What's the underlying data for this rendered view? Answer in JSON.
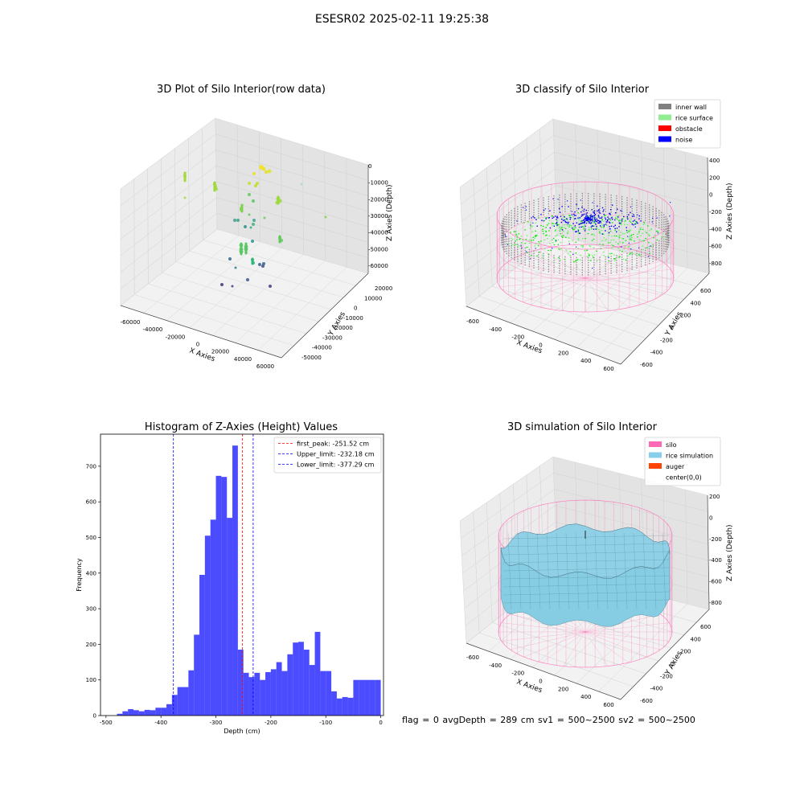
{
  "figure": {
    "suptitle": "ESESR02 2025-02-11 19:25:38",
    "bottom_info": "flag = 0     avgDepth = 289 cm  sv1 = 500~2500  sv2 = 500~2500"
  },
  "panels": {
    "raw": {
      "title": "3D Plot of Silo Interior(row data)",
      "xlabel": "X Axies",
      "ylabel": "Y Axies",
      "zlabel": "Z Axies (Depth)",
      "xticks": [
        "-60000",
        "-40000",
        "-20000",
        "0",
        "20000",
        "40000",
        "60000"
      ],
      "yticks": [
        "-50000",
        "-40000",
        "-30000",
        "-20000",
        "-10000",
        "0",
        "10000",
        "20000"
      ],
      "zticks": [
        "0",
        "-10000",
        "-20000",
        "-30000",
        "-40000",
        "-50000",
        "-60000"
      ]
    },
    "classify": {
      "title": "3D classify of Silo Interior",
      "xlabel": "X Axies",
      "ylabel": "Y Axies",
      "zlabel": "Z Axies (Depth)",
      "xticks": [
        "-600",
        "-400",
        "-200",
        "0",
        "200",
        "400",
        "600"
      ],
      "yticks": [
        "-600",
        "-400",
        "-200",
        "0",
        "200",
        "400",
        "600"
      ],
      "zticks": [
        "400",
        "200",
        "0",
        "-200",
        "-400",
        "-600",
        "-800"
      ],
      "legend": [
        {
          "label": "inner wall",
          "color": "#808080"
        },
        {
          "label": "rice surface",
          "color": "#90ee90"
        },
        {
          "label": "obstacle",
          "color": "#ff0000"
        },
        {
          "label": "noise",
          "color": "#0000ff"
        }
      ]
    },
    "simulation": {
      "title": "3D simulation of Silo Interior",
      "xlabel": "X Axies",
      "ylabel": "Y Axies",
      "zlabel": "Z Axies (Depth)",
      "xticks": [
        "-600",
        "-400",
        "-200",
        "0",
        "200",
        "400",
        "600"
      ],
      "yticks": [
        "-600",
        "-400",
        "-200",
        "0",
        "200",
        "400",
        "600"
      ],
      "zticks": [
        "200",
        "0",
        "-200",
        "-400",
        "-600",
        "-800"
      ],
      "legend": [
        {
          "label": "silo",
          "color": "#ff69b4"
        },
        {
          "label": "rice simulation",
          "color": "#87ceeb"
        },
        {
          "label": "auger",
          "color": "#ff4500"
        },
        {
          "label": "center(0,0)",
          "color": "#ffffff"
        }
      ]
    }
  },
  "chart_data": {
    "type": "bar",
    "title": "Histogram of Z-Axies (Height) Values",
    "xlabel": "Depth (cm)",
    "ylabel": "Frequency",
    "xlim": [
      -510,
      5
    ],
    "ylim": [
      0,
      790
    ],
    "xticks": [
      -500,
      -400,
      -300,
      -200,
      -100,
      0
    ],
    "yticks": [
      0,
      100,
      200,
      300,
      400,
      500,
      600,
      700
    ],
    "bar_color": "#0000ff",
    "bar_opacity": 0.7,
    "bin_edges": [
      -480,
      -470,
      -460,
      -450,
      -440,
      -430,
      -420,
      -410,
      -400,
      -390,
      -380,
      -370,
      -360,
      -350,
      -340,
      -330,
      -320,
      -310,
      -300,
      -290,
      -280,
      -270,
      -260,
      -250,
      -240,
      -230,
      -220,
      -210,
      -200,
      -190,
      -180,
      -170,
      -160,
      -150,
      -140,
      -130,
      -120,
      -110,
      -100,
      -90,
      -80,
      -70,
      -60,
      -50,
      -40,
      -30,
      -20,
      -10,
      0
    ],
    "values": [
      5,
      12,
      18,
      15,
      12,
      16,
      15,
      22,
      22,
      32,
      58,
      80,
      80,
      127,
      227,
      395,
      505,
      550,
      673,
      670,
      555,
      758,
      185,
      120,
      108,
      120,
      100,
      122,
      130,
      150,
      125,
      172,
      205,
      207,
      185,
      142,
      235,
      125,
      125,
      68,
      48,
      52,
      50,
      100,
      100,
      100,
      100,
      100
    ],
    "vlines": [
      {
        "x": -251.52,
        "color": "#ff0000",
        "label": "first_peak: -251.52 cm"
      },
      {
        "x": -232.18,
        "color": "#0000ff",
        "label": "Upper_limit: -232.18 cm"
      },
      {
        "x": -377.29,
        "color": "#0000ff",
        "label": "Lower_limit: -377.29 cm"
      }
    ],
    "legend_position": "top-right"
  }
}
